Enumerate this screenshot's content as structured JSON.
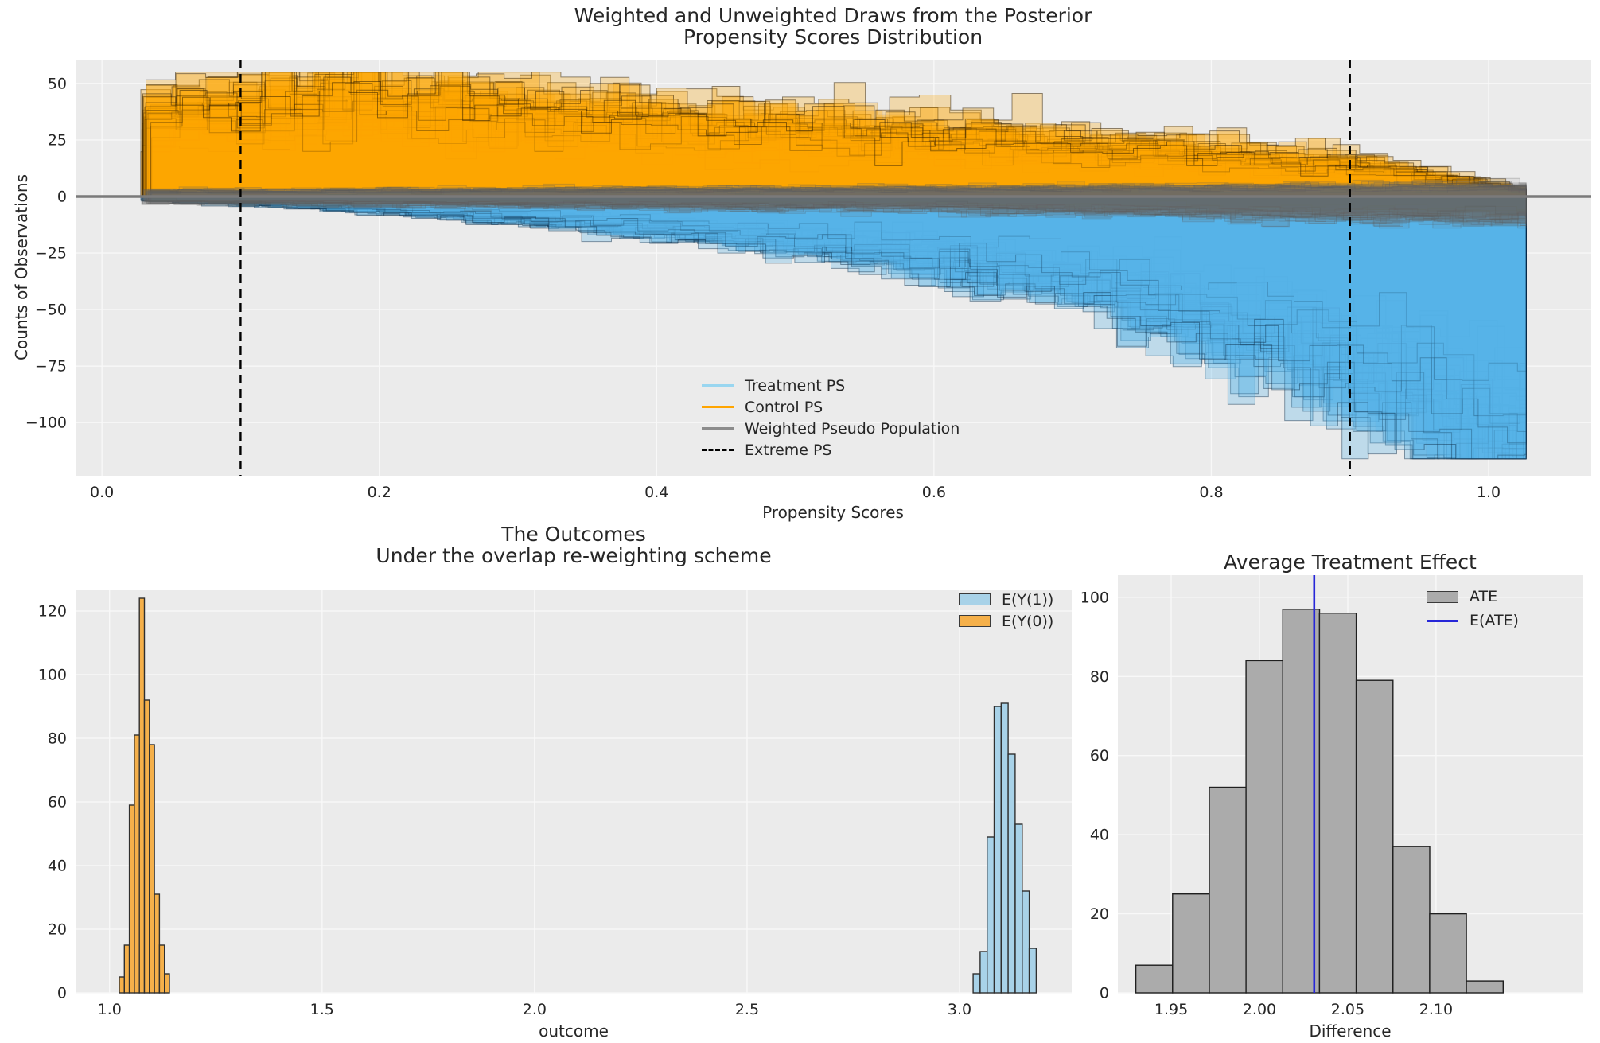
{
  "style": {
    "figure_background": "#ffffff",
    "axes_background": "#ebebeb",
    "grid_color": "#f8f8f8",
    "text_color": "#262626"
  },
  "chart_data": [
    {
      "id": "ps_distribution",
      "type": "area",
      "title_line1": "Weighted and Unweighted Draws from the Posterior",
      "title_line2": "Propensity Scores Distribution",
      "xlabel": "Propensity Scores",
      "ylabel": "Counts of Observations",
      "xlim": [
        -0.019,
        1.074
      ],
      "ylim": [
        -123.5,
        60.5
      ],
      "xticks": [
        0.0,
        0.2,
        0.4,
        0.6,
        0.8,
        1.0
      ],
      "xtick_labels": [
        "0.0",
        "0.2",
        "0.4",
        "0.6",
        "0.8",
        "1.0"
      ],
      "yticks": [
        50,
        25,
        0,
        -25,
        -50,
        -75,
        -100
      ],
      "ytick_labels": [
        "50",
        "25",
        "0",
        "−25",
        "−50",
        "−75",
        "−100"
      ],
      "extreme_ps": [
        0.1,
        0.9
      ],
      "hline_y": 0,
      "n_draws_control": 40,
      "n_draws_treatment": 40,
      "n_draws_weighted": 26,
      "bin_width": 0.021,
      "x_start": 0.032,
      "x_end": 1.027,
      "control_envelope": {
        "x": [
          0.032,
          0.06,
          0.1,
          0.15,
          0.2,
          0.25,
          0.3,
          0.35,
          0.4,
          0.45,
          0.5,
          0.55,
          0.6,
          0.65,
          0.7,
          0.75,
          0.8,
          0.85,
          0.9,
          0.94,
          0.97,
          1.0,
          1.027
        ],
        "h": [
          34,
          37,
          39,
          42,
          43,
          41,
          38,
          36,
          34,
          32,
          30,
          28,
          26,
          24,
          22,
          20,
          18,
          16,
          14,
          11,
          8,
          5,
          2
        ]
      },
      "treatment_envelope": {
        "x": [
          0.032,
          0.1,
          0.2,
          0.3,
          0.4,
          0.5,
          0.6,
          0.7,
          0.8,
          0.85,
          0.9,
          0.95,
          1.0,
          1.027
        ],
        "h": [
          -1.5,
          -3,
          -6,
          -10,
          -15,
          -21,
          -29,
          -40,
          -56,
          -66,
          -78,
          -92,
          -105,
          -108
        ]
      },
      "weighted_envelope_up": {
        "x": [
          0.032,
          0.3,
          0.7,
          1.027
        ],
        "h": [
          2.2,
          2.8,
          3.6,
          4.5
        ]
      },
      "weighted_envelope_down": {
        "x": [
          0.032,
          0.3,
          0.6,
          0.8,
          1.027
        ],
        "h": [
          -2.2,
          -3.2,
          -4.5,
          -6.5,
          -8.5
        ]
      },
      "colors": {
        "control_fill": "#ffa500",
        "treatment_fill": "#56b4e9",
        "weighted_fill": "#6a6a6a",
        "hline": "#7a7a7a",
        "extreme": "#000000"
      },
      "legend": [
        {
          "label": "Treatment PS",
          "color": "#99d6f0",
          "type": "line"
        },
        {
          "label": "Control PS",
          "color": "#ffa500",
          "type": "line"
        },
        {
          "label": "Weighted Pseudo Population",
          "color": "#8c8c8c",
          "type": "line"
        },
        {
          "label": "Extreme PS",
          "color": "#000000",
          "type": "dashed-line"
        }
      ]
    },
    {
      "id": "outcomes",
      "type": "histogram",
      "title_line1": "The Outcomes",
      "title_line2": "Under the overlap re-weighting scheme",
      "xlabel": "outcome",
      "xlim": [
        0.92,
        3.264
      ],
      "ylim": [
        0,
        126.5
      ],
      "xticks": [
        1.0,
        1.5,
        2.0,
        2.5,
        3.0
      ],
      "xtick_labels": [
        "1.0",
        "1.5",
        "2.0",
        "2.5",
        "3.0"
      ],
      "yticks": [
        0,
        20,
        40,
        60,
        80,
        100,
        120
      ],
      "ytick_labels": [
        "0",
        "20",
        "40",
        "60",
        "80",
        "100",
        "120"
      ],
      "series": [
        {
          "name": "E(Y(1))",
          "fill": "#a8d2e8",
          "edge": "#2f2f2f",
          "bin_start": 3.032,
          "bin_width": 0.0165,
          "values": [
            6,
            13,
            49,
            90,
            91,
            75,
            53,
            32,
            14
          ]
        },
        {
          "name": "E(Y(0))",
          "fill": "#f5b04a",
          "edge": "#2f2f2f",
          "bin_start": 1.023,
          "bin_width": 0.0118,
          "values": [
            5,
            15,
            59,
            81,
            124,
            92,
            78,
            31,
            15,
            6
          ]
        }
      ],
      "legend": [
        {
          "label": "E(Y(1))",
          "color": "#a8d2e8",
          "type": "patch"
        },
        {
          "label": "E(Y(0))",
          "color": "#f5b04a",
          "type": "patch"
        }
      ]
    },
    {
      "id": "ate",
      "type": "histogram",
      "title": "Average Treatment Effect",
      "xlabel": "Difference",
      "xlim": [
        1.9198,
        2.1834
      ],
      "ylim": [
        0,
        105.6
      ],
      "xticks": [
        1.95,
        2.0,
        2.05,
        2.1
      ],
      "xtick_labels": [
        "1.95",
        "2.00",
        "2.05",
        "2.10"
      ],
      "yticks": [
        0,
        20,
        40,
        60,
        80,
        100
      ],
      "ytick_labels": [
        "0",
        "20",
        "40",
        "60",
        "80",
        "100"
      ],
      "series": [
        {
          "name": "ATE",
          "fill": "#ababab",
          "edge": "#1f1f1f",
          "bin_start": 1.93,
          "bin_width": 0.0208,
          "values": [
            7,
            25,
            52,
            84,
            97,
            96,
            79,
            37,
            20,
            3
          ]
        }
      ],
      "e_ate": 2.031,
      "legend": [
        {
          "label": "ATE",
          "color": "#ababab",
          "type": "patch"
        },
        {
          "label": "E(ATE)",
          "color": "#2727d8",
          "type": "line"
        }
      ]
    }
  ]
}
